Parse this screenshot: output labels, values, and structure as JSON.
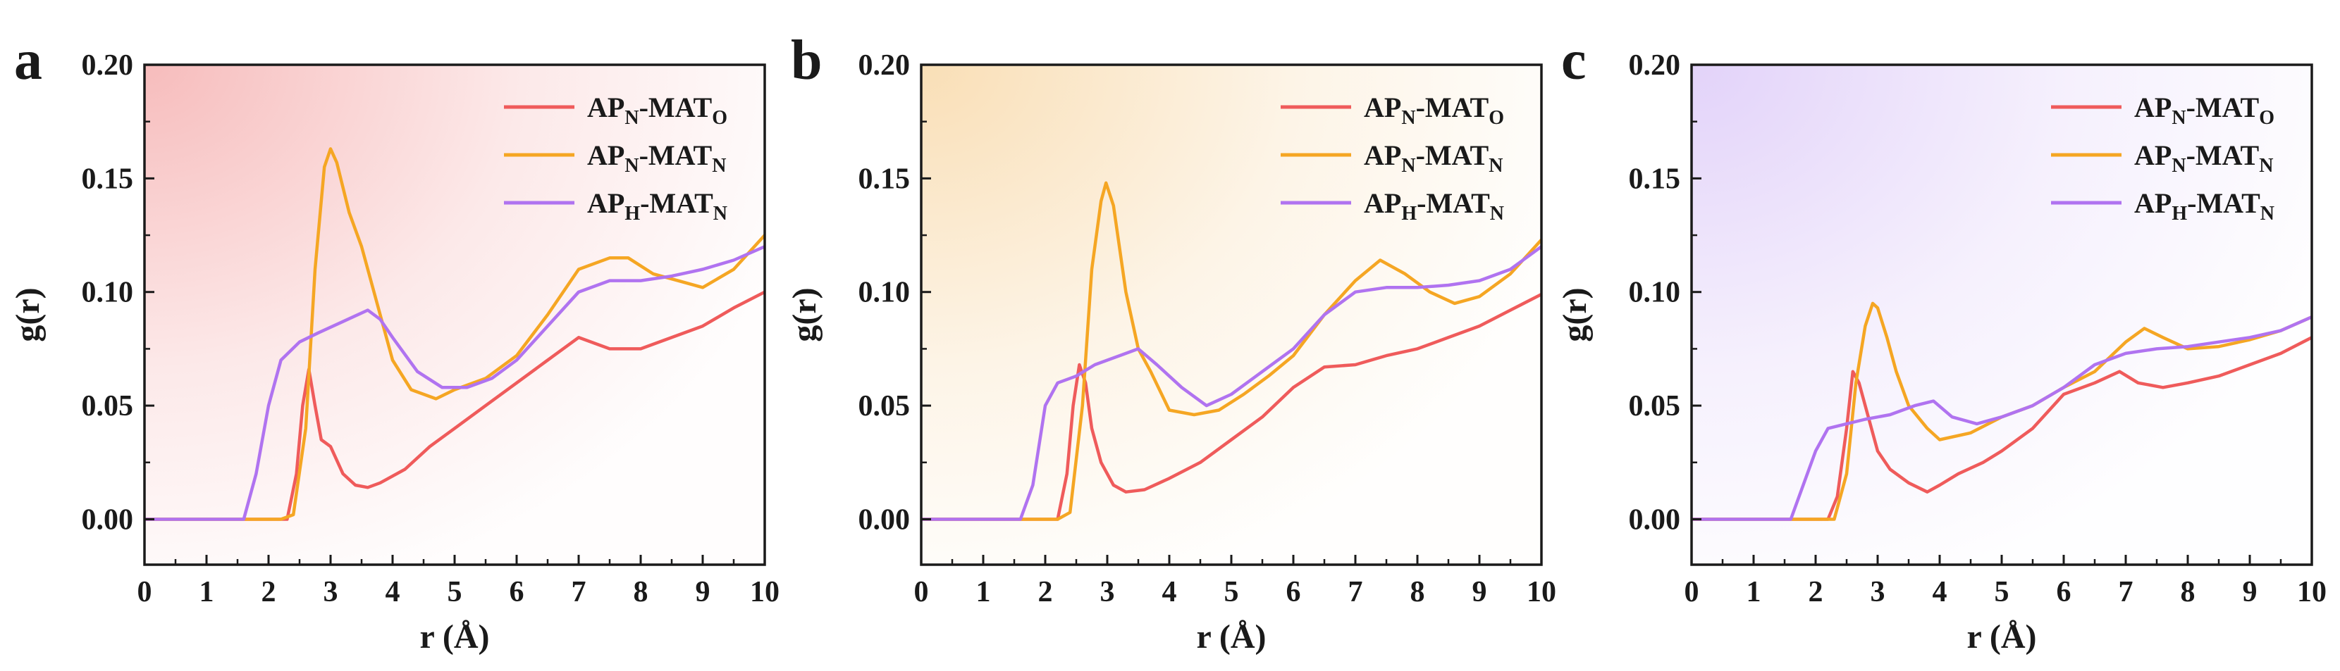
{
  "chart_data": [
    {
      "type": "line",
      "panel_label": "a",
      "xlabel": "r (Å)",
      "ylabel": "g(r)",
      "xlim": [
        0,
        10
      ],
      "ylim": [
        -0.02,
        0.2
      ],
      "xticks": [
        "0",
        "1",
        "2",
        "3",
        "4",
        "5",
        "6",
        "7",
        "8",
        "9",
        "10"
      ],
      "yticks": [
        "0.00",
        "0.05",
        "0.10",
        "0.15",
        "0.20"
      ],
      "grid": false,
      "legend_position": "top-right",
      "background_tint": "#f4a6a6",
      "series": [
        {
          "name": "APN-MATO",
          "base": "AP",
          "sub1": "N",
          "mid": "-MAT",
          "sub2": "O",
          "color": "#ef5b5b",
          "x": [
            0,
            2.3,
            2.45,
            2.55,
            2.65,
            2.75,
            2.85,
            3.0,
            3.2,
            3.4,
            3.6,
            3.8,
            4.2,
            4.6,
            5.0,
            5.5,
            6.0,
            6.5,
            7.0,
            7.5,
            8.0,
            8.5,
            9.0,
            9.5,
            10.0
          ],
          "y": [
            0,
            0,
            0.02,
            0.05,
            0.066,
            0.05,
            0.035,
            0.032,
            0.02,
            0.015,
            0.014,
            0.016,
            0.022,
            0.032,
            0.04,
            0.05,
            0.06,
            0.07,
            0.08,
            0.075,
            0.075,
            0.08,
            0.085,
            0.093,
            0.1
          ]
        },
        {
          "name": "APN-MATN",
          "base": "AP",
          "sub1": "N",
          "mid": "-MAT",
          "sub2": "N",
          "color": "#f5a623",
          "x": [
            0,
            2.2,
            2.4,
            2.6,
            2.75,
            2.9,
            3.0,
            3.1,
            3.3,
            3.5,
            3.7,
            4.0,
            4.3,
            4.7,
            5.0,
            5.5,
            6.0,
            6.5,
            7.0,
            7.5,
            7.8,
            8.2,
            8.6,
            9.0,
            9.5,
            10.0
          ],
          "y": [
            0,
            0,
            0.002,
            0.04,
            0.11,
            0.155,
            0.163,
            0.157,
            0.135,
            0.12,
            0.1,
            0.07,
            0.057,
            0.053,
            0.057,
            0.062,
            0.072,
            0.09,
            0.11,
            0.115,
            0.115,
            0.108,
            0.105,
            0.102,
            0.11,
            0.125
          ]
        },
        {
          "name": "APH-MATN",
          "base": "AP",
          "sub1": "H",
          "mid": "-MAT",
          "sub2": "N",
          "color": "#b073f0",
          "x": [
            0,
            1.6,
            1.8,
            2.0,
            2.2,
            2.5,
            2.8,
            3.2,
            3.6,
            3.8,
            4.0,
            4.4,
            4.8,
            5.2,
            5.6,
            6.0,
            6.5,
            7.0,
            7.5,
            8.0,
            8.5,
            9.0,
            9.5,
            10.0
          ],
          "y": [
            0,
            0,
            0.02,
            0.05,
            0.07,
            0.078,
            0.082,
            0.087,
            0.092,
            0.088,
            0.08,
            0.065,
            0.058,
            0.058,
            0.062,
            0.07,
            0.085,
            0.1,
            0.105,
            0.105,
            0.107,
            0.11,
            0.114,
            0.12
          ]
        }
      ]
    },
    {
      "type": "line",
      "panel_label": "b",
      "xlabel": "r (Å)",
      "ylabel": "g(r)",
      "xlim": [
        0,
        10
      ],
      "ylim": [
        -0.02,
        0.2
      ],
      "xticks": [
        "0",
        "1",
        "2",
        "3",
        "4",
        "5",
        "6",
        "7",
        "8",
        "9",
        "10"
      ],
      "yticks": [
        "0.00",
        "0.05",
        "0.10",
        "0.15",
        "0.20"
      ],
      "grid": false,
      "legend_position": "top-right",
      "background_tint": "#f7d49e",
      "series": [
        {
          "name": "APN-MATO",
          "base": "AP",
          "sub1": "N",
          "mid": "-MAT",
          "sub2": "O",
          "color": "#ef5b5b",
          "x": [
            0,
            2.2,
            2.35,
            2.45,
            2.55,
            2.65,
            2.75,
            2.9,
            3.1,
            3.3,
            3.6,
            4.0,
            4.5,
            5.0,
            5.5,
            6.0,
            6.5,
            7.0,
            7.5,
            8.0,
            8.5,
            9.0,
            9.5,
            10.0
          ],
          "y": [
            0,
            0,
            0.02,
            0.05,
            0.068,
            0.06,
            0.04,
            0.025,
            0.015,
            0.012,
            0.013,
            0.018,
            0.025,
            0.035,
            0.045,
            0.058,
            0.067,
            0.068,
            0.072,
            0.075,
            0.08,
            0.085,
            0.092,
            0.099
          ]
        },
        {
          "name": "APN-MATN",
          "base": "AP",
          "sub1": "N",
          "mid": "-MAT",
          "sub2": "N",
          "color": "#f5a623",
          "x": [
            0,
            2.2,
            2.4,
            2.6,
            2.75,
            2.9,
            2.98,
            3.1,
            3.3,
            3.5,
            3.7,
            4.0,
            4.4,
            4.8,
            5.2,
            5.6,
            6.0,
            6.5,
            7.0,
            7.4,
            7.8,
            8.2,
            8.6,
            9.0,
            9.5,
            10.0
          ],
          "y": [
            0,
            0,
            0.003,
            0.05,
            0.11,
            0.14,
            0.148,
            0.138,
            0.1,
            0.075,
            0.065,
            0.048,
            0.046,
            0.048,
            0.055,
            0.063,
            0.072,
            0.09,
            0.105,
            0.114,
            0.108,
            0.1,
            0.095,
            0.098,
            0.108,
            0.123
          ]
        },
        {
          "name": "APH-MATN",
          "base": "AP",
          "sub1": "H",
          "mid": "-MAT",
          "sub2": "N",
          "color": "#b073f0",
          "x": [
            0,
            1.6,
            1.8,
            2.0,
            2.2,
            2.5,
            2.8,
            3.2,
            3.5,
            3.8,
            4.2,
            4.6,
            5.0,
            5.5,
            6.0,
            6.5,
            7.0,
            7.5,
            8.0,
            8.5,
            9.0,
            9.5,
            10.0
          ],
          "y": [
            0,
            0,
            0.015,
            0.05,
            0.06,
            0.063,
            0.068,
            0.072,
            0.075,
            0.068,
            0.058,
            0.05,
            0.055,
            0.065,
            0.075,
            0.09,
            0.1,
            0.102,
            0.102,
            0.103,
            0.105,
            0.11,
            0.12
          ]
        }
      ]
    },
    {
      "type": "line",
      "panel_label": "c",
      "xlabel": "r (Å)",
      "ylabel": "g(r)",
      "xlim": [
        0,
        10
      ],
      "ylim": [
        -0.02,
        0.2
      ],
      "xticks": [
        "0",
        "1",
        "2",
        "3",
        "4",
        "5",
        "6",
        "7",
        "8",
        "9",
        "10"
      ],
      "yticks": [
        "0.00",
        "0.05",
        "0.10",
        "0.15",
        "0.20"
      ],
      "grid": false,
      "legend_position": "top-right",
      "background_tint": "#d9c4f7",
      "series": [
        {
          "name": "APN-MATO",
          "base": "AP",
          "sub1": "N",
          "mid": "-MAT",
          "sub2": "O",
          "color": "#ef5b5b",
          "x": [
            0,
            2.2,
            2.35,
            2.5,
            2.6,
            2.7,
            2.8,
            2.9,
            3.0,
            3.2,
            3.5,
            3.8,
            4.0,
            4.3,
            4.7,
            5.0,
            5.5,
            6.0,
            6.5,
            6.9,
            7.2,
            7.6,
            8.0,
            8.5,
            9.0,
            9.5,
            10.0
          ],
          "y": [
            0,
            0,
            0.01,
            0.04,
            0.065,
            0.06,
            0.05,
            0.04,
            0.03,
            0.022,
            0.016,
            0.012,
            0.015,
            0.02,
            0.025,
            0.03,
            0.04,
            0.055,
            0.06,
            0.065,
            0.06,
            0.058,
            0.06,
            0.063,
            0.068,
            0.073,
            0.08
          ]
        },
        {
          "name": "APN-MATN",
          "base": "AP",
          "sub1": "N",
          "mid": "-MAT",
          "sub2": "N",
          "color": "#f5a623",
          "x": [
            0,
            2.3,
            2.5,
            2.65,
            2.8,
            2.92,
            3.0,
            3.15,
            3.3,
            3.5,
            3.8,
            4.0,
            4.5,
            5.0,
            5.5,
            6.0,
            6.5,
            7.0,
            7.3,
            7.6,
            8.0,
            8.5,
            9.0,
            9.5,
            10.0
          ],
          "y": [
            0,
            0,
            0.02,
            0.06,
            0.085,
            0.095,
            0.093,
            0.08,
            0.065,
            0.05,
            0.04,
            0.035,
            0.038,
            0.045,
            0.05,
            0.058,
            0.065,
            0.078,
            0.084,
            0.08,
            0.075,
            0.076,
            0.079,
            0.083,
            0.089
          ]
        },
        {
          "name": "APH-MATN",
          "base": "AP",
          "sub1": "H",
          "mid": "-MAT",
          "sub2": "N",
          "color": "#b073f0",
          "x": [
            0,
            1.6,
            1.8,
            2.0,
            2.2,
            2.5,
            2.8,
            3.2,
            3.6,
            3.9,
            4.2,
            4.6,
            5.0,
            5.5,
            6.0,
            6.5,
            7.0,
            7.5,
            8.0,
            8.5,
            9.0,
            9.5,
            10.0
          ],
          "y": [
            0,
            0,
            0.015,
            0.03,
            0.04,
            0.042,
            0.044,
            0.046,
            0.05,
            0.052,
            0.045,
            0.042,
            0.045,
            0.05,
            0.058,
            0.068,
            0.073,
            0.075,
            0.076,
            0.078,
            0.08,
            0.083,
            0.089
          ]
        }
      ]
    }
  ]
}
